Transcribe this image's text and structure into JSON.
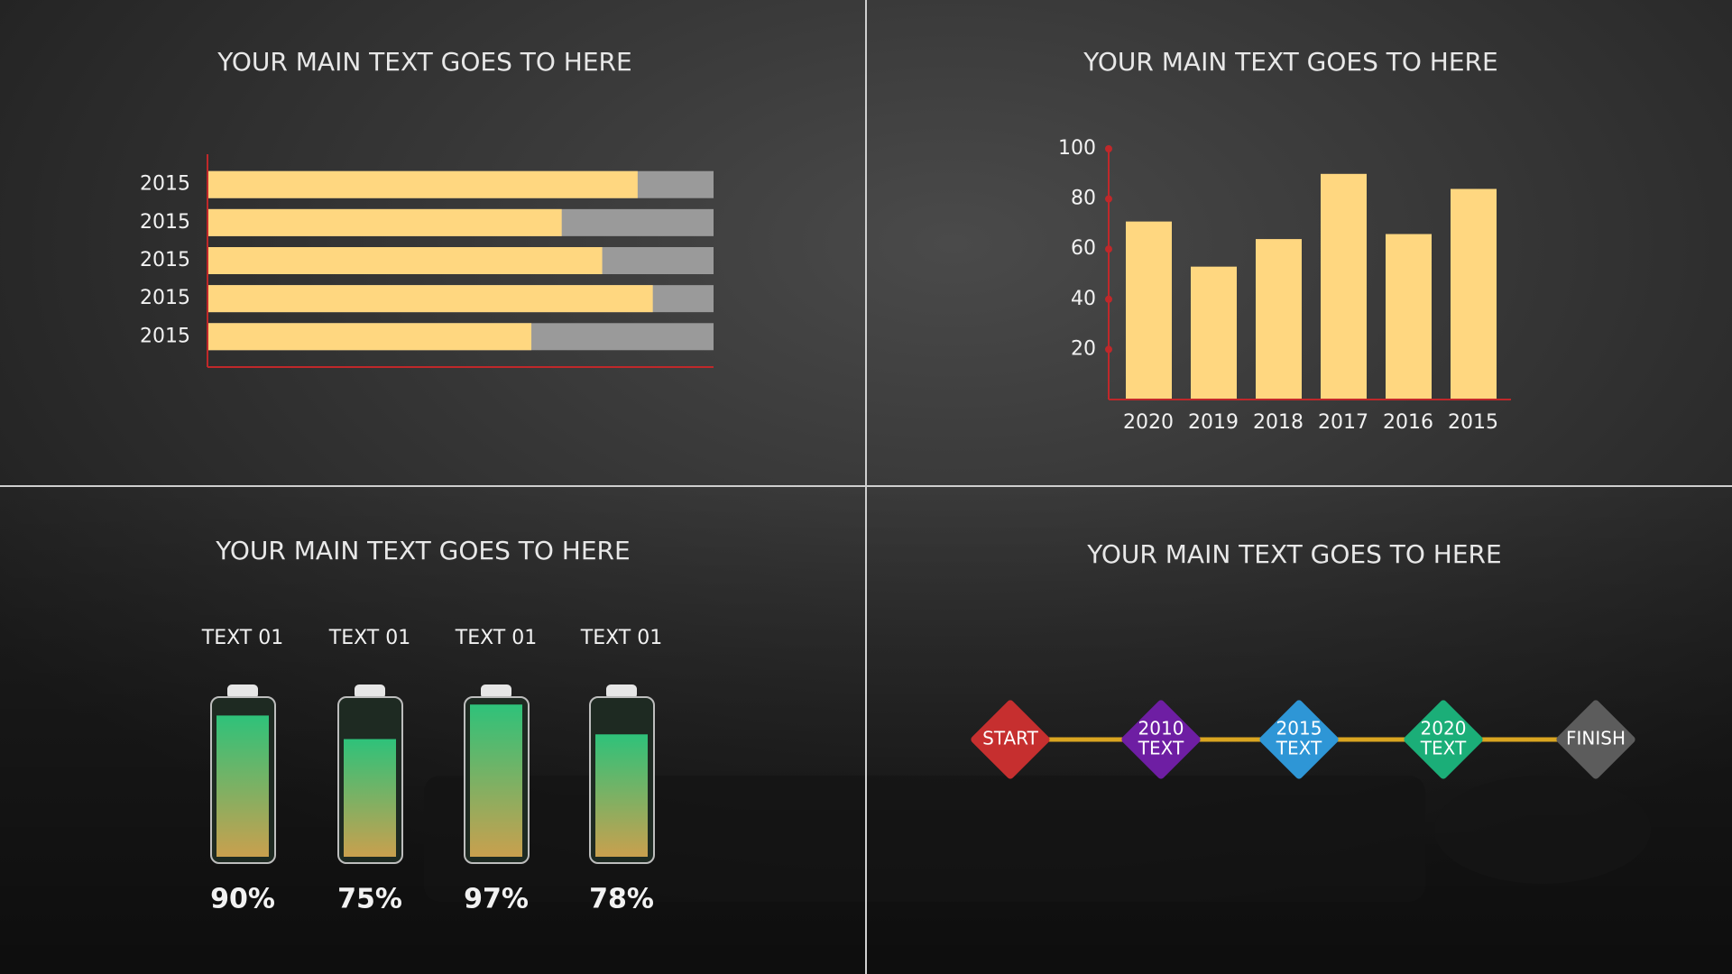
{
  "chart_data": [
    {
      "type": "hbar",
      "title": "YOUR MAIN TEXT GOES TO HERE",
      "categories": [
        "2015",
        "2015",
        "2015",
        "2015",
        "2015"
      ],
      "values": [
        85,
        70,
        78,
        88,
        64
      ],
      "xlim": [
        0,
        100
      ],
      "color": "#ffd780",
      "track_color": "#9a9a9a",
      "axis_color": "#c0282a"
    },
    {
      "type": "bar",
      "title": "YOUR MAIN TEXT GOES TO HERE",
      "categories": [
        "2020",
        "2019",
        "2018",
        "2017",
        "2016",
        "2015"
      ],
      "values": [
        71,
        53,
        64,
        90,
        66,
        84
      ],
      "ylim": [
        0,
        100
      ],
      "yticks": [
        20,
        40,
        60,
        80,
        100
      ],
      "color": "#ffd780",
      "axis_color": "#c0282a"
    },
    {
      "type": "battery",
      "title": "YOUR MAIN TEXT GOES TO HERE",
      "categories": [
        "TEXT 01",
        "TEXT 01",
        "TEXT 01",
        "TEXT 01"
      ],
      "values": [
        90,
        75,
        97,
        78
      ],
      "value_labels": [
        "90%",
        "75%",
        "97%",
        "78%"
      ],
      "ylim": [
        0,
        100
      ]
    },
    {
      "type": "timeline",
      "title": "YOUR MAIN TEXT GOES TO HERE",
      "line_color": "#d9a521",
      "nodes": [
        {
          "lines": [
            "START"
          ],
          "color": "#c62f2f"
        },
        {
          "lines": [
            "2010",
            "TEXT"
          ],
          "color": "#6e1ea3"
        },
        {
          "lines": [
            "2015",
            "TEXT"
          ],
          "color": "#2e96d6"
        },
        {
          "lines": [
            "2020",
            "TEXT"
          ],
          "color": "#1bae78"
        },
        {
          "lines": [
            "FINISH"
          ],
          "color": "#5c5c5c"
        }
      ]
    }
  ]
}
